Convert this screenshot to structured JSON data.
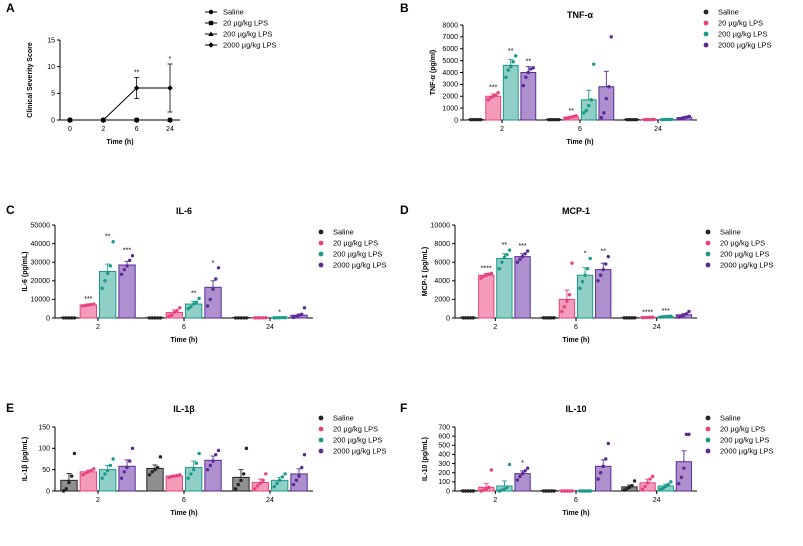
{
  "series_names": [
    "Saline",
    "20 µg/kg LPS",
    "200 µg/kg LPS",
    "2000 µg/kg LPS"
  ],
  "colors": [
    "#222222",
    "#e8417f",
    "#1a9a8c",
    "#5a2a96"
  ],
  "fills": [
    "#8f8f8f",
    "#f39bb8",
    "#8fcfc6",
    "#ae90cf"
  ],
  "chart_data": [
    {
      "id": "A",
      "type": "line",
      "title": "",
      "xlabel": "Time (h)",
      "ylabel": "Clinical Severity Score",
      "categories": [
        "0",
        "2",
        "6",
        "24"
      ],
      "yticks": [
        "0",
        "5",
        "10",
        "15"
      ],
      "ylim": [
        0,
        15
      ],
      "series": [
        {
          "name": "Saline",
          "values": [
            0,
            0,
            0,
            0
          ],
          "err": [
            0,
            0,
            0,
            0
          ]
        },
        {
          "name": "20 µg/kg LPS",
          "values": [
            0,
            0,
            0,
            0
          ],
          "err": [
            0,
            0,
            0,
            0
          ]
        },
        {
          "name": "200 µg/kg LPS",
          "values": [
            0,
            0,
            0,
            0
          ],
          "err": [
            0,
            0,
            0,
            0
          ]
        },
        {
          "name": "2000 µg/kg LPS",
          "values": [
            0,
            0,
            6,
            6
          ],
          "err": [
            0,
            0,
            2,
            4.5
          ]
        }
      ],
      "annotations": [
        {
          "category": 2,
          "text": "**"
        },
        {
          "category": 3,
          "text": "*"
        }
      ]
    },
    {
      "id": "B",
      "type": "bar",
      "title": "TNF-α",
      "xlabel": "Time (h)",
      "ylabel": "TNF-α (pg/ml)",
      "categories": [
        "2",
        "6",
        "24"
      ],
      "yticks": [
        "0",
        "1000",
        "2000",
        "3000",
        "4000",
        "5000",
        "6000",
        "7000",
        "8000"
      ],
      "ylim": [
        0,
        8000
      ],
      "series": [
        {
          "name": "Saline",
          "values": [
            30,
            30,
            30
          ],
          "err": [
            10,
            10,
            10
          ],
          "points": [
            [
              30,
              30,
              30,
              30,
              30
            ],
            [
              30,
              30,
              30,
              30,
              30
            ],
            [
              30,
              30,
              30,
              30,
              30
            ]
          ]
        },
        {
          "name": "20 µg/kg LPS",
          "values": [
            2000,
            250,
            40
          ],
          "err": [
            200,
            60,
            10
          ],
          "points": [
            [
              1700,
              1900,
              2000,
              2100,
              2300
            ],
            [
              150,
              200,
              250,
              300,
              350
            ],
            [
              30,
              35,
              40,
              45,
              50
            ]
          ]
        },
        {
          "name": "200 µg/kg LPS",
          "values": [
            4600,
            1700,
            40
          ],
          "err": [
            500,
            800,
            10
          ],
          "points": [
            [
              3600,
              4200,
              4500,
              4900,
              5400
            ],
            [
              600,
              800,
              1200,
              1700,
              4700
            ],
            [
              30,
              35,
              40,
              45,
              50
            ]
          ]
        },
        {
          "name": "2000 µg/kg LPS",
          "values": [
            4000,
            2800,
            200
          ],
          "err": [
            500,
            1300,
            60
          ],
          "points": [
            [
              2900,
              3600,
              4000,
              4300,
              4400
            ],
            [
              200,
              600,
              1800,
              2800,
              7000
            ],
            [
              100,
              150,
              200,
              250,
              300
            ]
          ]
        }
      ],
      "annotations": [
        {
          "category": 0,
          "series": 1,
          "text": "***"
        },
        {
          "category": 0,
          "series": 2,
          "text": "**"
        },
        {
          "category": 0,
          "series": 3,
          "text": "**"
        },
        {
          "category": 1,
          "series": 1,
          "text": "**"
        }
      ]
    },
    {
      "id": "C",
      "type": "bar",
      "title": "IL-6",
      "xlabel": "Time (h)",
      "ylabel": "IL-6 (pg/mL)",
      "categories": [
        "2",
        "6",
        "24"
      ],
      "yticks": [
        "0",
        "10000",
        "20000",
        "30000",
        "40000",
        "50000"
      ],
      "ylim": [
        0,
        50000
      ],
      "series": [
        {
          "name": "Saline",
          "values": [
            50,
            50,
            50
          ],
          "err": [
            20,
            20,
            20
          ],
          "points": [
            [
              50,
              50,
              50,
              50,
              50
            ],
            [
              50,
              50,
              50,
              50,
              50
            ],
            [
              50,
              50,
              50,
              50,
              50
            ]
          ]
        },
        {
          "name": "20 µg/kg LPS",
          "values": [
            7000,
            3000,
            100
          ],
          "err": [
            500,
            1300,
            30
          ],
          "points": [
            [
              6500,
              6800,
              7000,
              7200,
              7500
            ],
            [
              1000,
              1500,
              3000,
              4000,
              5500
            ],
            [
              80,
              90,
              100,
              110,
              120
            ]
          ]
        },
        {
          "name": "200 µg/kg LPS",
          "values": [
            25000,
            7500,
            150
          ],
          "err": [
            4000,
            1500,
            50
          ],
          "points": [
            [
              16000,
              20000,
              24000,
              28000,
              41000
            ],
            [
              5000,
              6000,
              7500,
              8500,
              10500
            ],
            [
              100,
              120,
              150,
              180,
              200
            ]
          ]
        },
        {
          "name": "2000 µg/kg LPS",
          "values": [
            28500,
            16500,
            1500
          ],
          "err": [
            2000,
            3500,
            600
          ],
          "points": [
            [
              23500,
              26000,
              28000,
              31000,
              33500
            ],
            [
              6500,
              10000,
              15500,
              21000,
              27000
            ],
            [
              300,
              700,
              1500,
              2000,
              5500
            ]
          ]
        }
      ],
      "annotations": [
        {
          "category": 0,
          "series": 1,
          "text": "***"
        },
        {
          "category": 0,
          "series": 2,
          "text": "**"
        },
        {
          "category": 0,
          "series": 3,
          "text": "***"
        },
        {
          "category": 1,
          "series": 2,
          "text": "**"
        },
        {
          "category": 1,
          "series": 3,
          "text": "*"
        },
        {
          "category": 2,
          "series": 2,
          "text": "*"
        }
      ]
    },
    {
      "id": "D",
      "type": "bar",
      "title": "MCP-1",
      "xlabel": "Time (h)",
      "ylabel": "MCP-1 (pg/mL)",
      "categories": [
        "2",
        "6",
        "24"
      ],
      "yticks": [
        "0",
        "2000",
        "4000",
        "6000",
        "8000",
        "10000"
      ],
      "ylim": [
        0,
        10000
      ],
      "series": [
        {
          "name": "Saline",
          "values": [
            20,
            20,
            20
          ],
          "err": [
            10,
            10,
            10
          ],
          "points": [
            [
              20,
              20,
              20,
              20,
              20
            ],
            [
              20,
              20,
              20,
              20,
              20
            ],
            [
              20,
              20,
              20,
              20,
              20
            ]
          ]
        },
        {
          "name": "20 µg/kg LPS",
          "values": [
            4600,
            2000,
            60
          ],
          "err": [
            200,
            1000,
            20
          ],
          "points": [
            [
              4300,
              4500,
              4600,
              4700,
              4800
            ],
            [
              700,
              1200,
              1800,
              2500,
              5900
            ],
            [
              40,
              50,
              60,
              70,
              80
            ]
          ]
        },
        {
          "name": "200 µg/kg LPS",
          "values": [
            6400,
            4600,
            150
          ],
          "err": [
            500,
            800,
            50
          ],
          "points": [
            [
              5300,
              6000,
              6500,
              6800,
              7300
            ],
            [
              3200,
              3900,
              4600,
              5300,
              6400
            ],
            [
              100,
              120,
              150,
              180,
              200
            ]
          ]
        },
        {
          "name": "2000 µg/kg LPS",
          "values": [
            6600,
            5200,
            350
          ],
          "err": [
            300,
            700,
            120
          ],
          "points": [
            [
              6000,
              6300,
              6600,
              6900,
              7200
            ],
            [
              4000,
              4600,
              5200,
              5800,
              6600
            ],
            [
              100,
              200,
              300,
              450,
              700
            ]
          ]
        }
      ],
      "annotations": [
        {
          "category": 0,
          "series": 1,
          "text": "****"
        },
        {
          "category": 0,
          "series": 2,
          "text": "**"
        },
        {
          "category": 0,
          "series": 3,
          "text": "***"
        },
        {
          "category": 1,
          "series": 2,
          "text": "*"
        },
        {
          "category": 1,
          "series": 3,
          "text": "**"
        },
        {
          "category": 2,
          "series": 1,
          "text": "****"
        },
        {
          "category": 2,
          "series": 2,
          "text": "***"
        }
      ]
    },
    {
      "id": "E",
      "type": "bar",
      "title": "IL-1β",
      "xlabel": "Time (h)",
      "ylabel": "IL-1β (pg/mL)",
      "categories": [
        "2",
        "6",
        "24"
      ],
      "yticks": [
        "0",
        "50",
        "100",
        "150"
      ],
      "ylim": [
        0,
        150
      ],
      "series": [
        {
          "name": "Saline",
          "values": [
            25,
            53,
            32
          ],
          "err": [
            16,
            8,
            18
          ],
          "points": [
            [
              0,
              5,
              20,
              35,
              88
            ],
            [
              38,
              45,
              50,
              55,
              80
            ],
            [
              5,
              15,
              25,
              40,
              100
            ]
          ]
        },
        {
          "name": "20 µg/kg LPS",
          "values": [
            45,
            35,
            20
          ],
          "err": [
            4,
            2,
            8
          ],
          "points": [
            [
              38,
              42,
              45,
              48,
              52
            ],
            [
              32,
              34,
              35,
              36,
              38
            ],
            [
              5,
              12,
              18,
              25,
              40
            ]
          ]
        },
        {
          "name": "200 µg/kg LPS",
          "values": [
            50,
            55,
            25
          ],
          "err": [
            10,
            15,
            7
          ],
          "points": [
            [
              30,
              40,
              48,
              60,
              75
            ],
            [
              30,
              40,
              50,
              65,
              88
            ],
            [
              10,
              18,
              25,
              33,
              40
            ]
          ]
        },
        {
          "name": "2000 µg/kg LPS",
          "values": [
            58,
            72,
            40
          ],
          "err": [
            15,
            10,
            12
          ],
          "points": [
            [
              30,
              45,
              55,
              70,
              100
            ],
            [
              50,
              60,
              70,
              85,
              95
            ],
            [
              15,
              25,
              35,
              55,
              85
            ]
          ]
        }
      ],
      "annotations": []
    },
    {
      "id": "F",
      "type": "bar",
      "title": "IL-10",
      "xlabel": "Time (h)",
      "ylabel": "IL-10 (pg/mL)",
      "categories": [
        "2",
        "6",
        "24"
      ],
      "yticks": [
        "0",
        "100",
        "200",
        "300",
        "400",
        "500",
        "600",
        "700"
      ],
      "ylim": [
        0,
        700
      ],
      "series": [
        {
          "name": "Saline",
          "values": [
            0,
            0,
            45
          ],
          "err": [
            0,
            0,
            20
          ],
          "points": [
            [
              0,
              0,
              0,
              0,
              0
            ],
            [
              0,
              0,
              0,
              0,
              0
            ],
            [
              10,
              25,
              40,
              60,
              110
            ]
          ]
        },
        {
          "name": "20 µg/kg LPS",
          "values": [
            40,
            0,
            90
          ],
          "err": [
            40,
            0,
            40
          ],
          "points": [
            [
              0,
              10,
              20,
              40,
              230
            ],
            [
              0,
              0,
              0,
              0,
              0
            ],
            [
              20,
              50,
              90,
              130,
              160
            ]
          ]
        },
        {
          "name": "200 µg/kg LPS",
          "values": [
            55,
            0,
            55
          ],
          "err": [
            55,
            0,
            20
          ],
          "points": [
            [
              0,
              10,
              20,
              40,
              290
            ],
            [
              0,
              0,
              0,
              0,
              0
            ],
            [
              20,
              30,
              50,
              70,
              100
            ]
          ]
        },
        {
          "name": "2000 µg/kg LPS",
          "values": [
            190,
            270,
            320
          ],
          "err": [
            30,
            70,
            120
          ],
          "points": [
            [
              120,
              160,
              190,
              220,
              250
            ],
            [
              130,
              200,
              270,
              350,
              520
            ],
            [
              80,
              150,
              250,
              620,
              620
            ]
          ]
        }
      ],
      "annotations": [
        {
          "category": 0,
          "series": 3,
          "text": "*"
        }
      ]
    }
  ]
}
